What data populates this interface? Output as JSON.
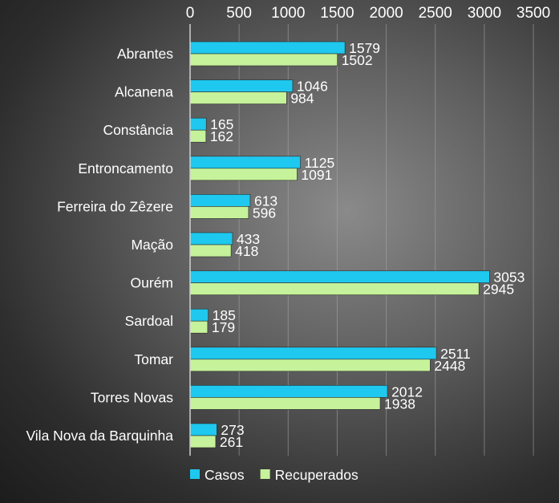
{
  "chart_data": {
    "type": "bar",
    "orientation": "horizontal",
    "categories": [
      "Abrantes",
      "Alcanena",
      "Constância",
      "Entroncamento",
      "Ferreira do Zêzere",
      "Mação",
      "Ourém",
      "Sardoal",
      "Tomar",
      "Torres Novas",
      "Vila Nova da Barquinha"
    ],
    "series": [
      {
        "name": "Casos",
        "color": "#1ec8ee",
        "values": [
          1579,
          1046,
          165,
          1125,
          613,
          433,
          3053,
          185,
          2511,
          2012,
          273
        ]
      },
      {
        "name": "Recuperados",
        "color": "#c5f29a",
        "values": [
          1502,
          984,
          162,
          1091,
          596,
          418,
          2945,
          179,
          2448,
          1938,
          261
        ]
      }
    ],
    "xlim": [
      0,
      3500
    ],
    "xticks": [
      0,
      500,
      1000,
      1500,
      2000,
      2500,
      3000,
      3500
    ],
    "x_axis_position": "top",
    "grid": true,
    "legend_position": "bottom-left",
    "data_labels": true
  }
}
